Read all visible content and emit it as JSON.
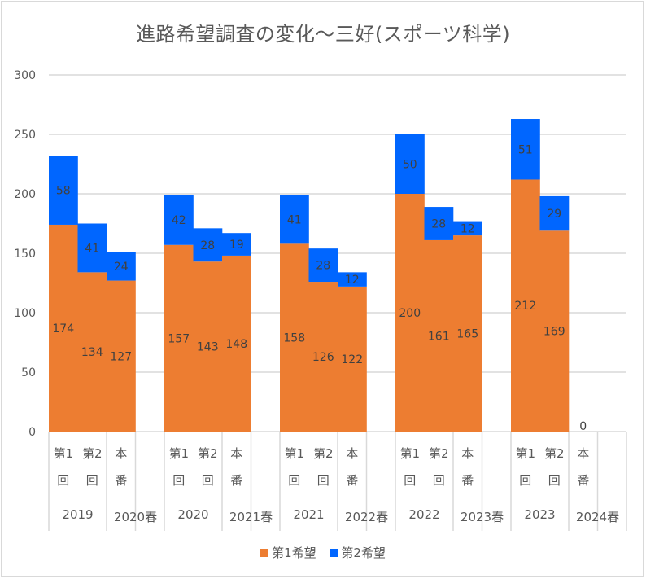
{
  "chart_data": {
    "type": "bar",
    "stacked": true,
    "title": "進路希望調査の変化～三好(スポーツ科学)",
    "xlabel": "",
    "ylabel": "",
    "ylim": [
      0,
      300
    ],
    "yticks": [
      0,
      50,
      100,
      150,
      200,
      250,
      300
    ],
    "grid": true,
    "legend_position": "bottom",
    "groups": [
      {
        "year_label": "2019",
        "final_label": "2020春"
      },
      {
        "year_label": "2020",
        "final_label": "2021春"
      },
      {
        "year_label": "2021",
        "final_label": "2022春"
      },
      {
        "year_label": "2022",
        "final_label": "2023春"
      },
      {
        "year_label": "2023",
        "final_label": "2024春"
      }
    ],
    "sub_categories": [
      {
        "line1": "第1",
        "line2": "回"
      },
      {
        "line1": "第2",
        "line2": "回"
      },
      {
        "line1": "本",
        "line2": "番"
      }
    ],
    "series": [
      {
        "name": "第1希望",
        "color": "#ED7D31",
        "values": [
          [
            174,
            134,
            127
          ],
          [
            157,
            143,
            148
          ],
          [
            158,
            126,
            122
          ],
          [
            200,
            161,
            165
          ],
          [
            212,
            169,
            0
          ]
        ]
      },
      {
        "name": "第2希望",
        "color": "#0066FF",
        "values": [
          [
            58,
            41,
            24
          ],
          [
            42,
            28,
            19
          ],
          [
            41,
            28,
            12
          ],
          [
            50,
            28,
            12
          ],
          [
            51,
            29,
            null
          ]
        ]
      }
    ],
    "shown_zero_label": "0"
  }
}
